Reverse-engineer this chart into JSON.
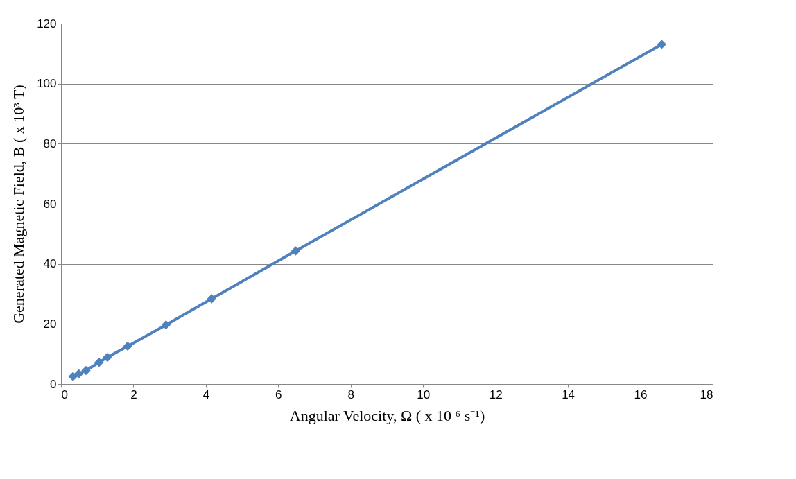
{
  "chart_data": {
    "type": "line",
    "xlabel": "Angular Velocity, Ω ( x 10 ⁶ s⁻¹)",
    "ylabel": "Generated Magnetic Field, B ( x 10³ T)",
    "x": [
      0.33,
      0.49,
      0.69,
      1.05,
      1.28,
      1.84,
      2.9,
      4.16,
      6.48,
      16.59
    ],
    "series": [
      {
        "color": "#4f81bd",
        "values": [
          2.5,
          3.4,
          4.5,
          7.2,
          8.9,
          12.6,
          19.7,
          28.4,
          44.3,
          113.1
        ]
      }
    ],
    "xlim": [
      0,
      18
    ],
    "xticks": [
      0,
      2,
      4,
      6,
      8,
      10,
      12,
      14,
      16,
      18
    ],
    "ylim": [
      0,
      120
    ],
    "yticks": [
      0,
      20,
      40,
      60,
      80,
      100,
      120
    ],
    "grid": "y",
    "marker": "diamond",
    "line_style": "solid"
  }
}
